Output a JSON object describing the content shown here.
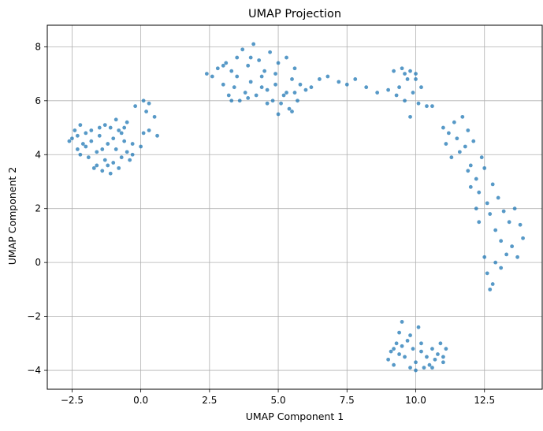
{
  "chart_data": {
    "type": "scatter",
    "title": "UMAP Projection",
    "xlabel": "UMAP Component 1",
    "ylabel": "UMAP Component 2",
    "xlim": [
      -3.4,
      14.6
    ],
    "ylim": [
      -4.7,
      8.8
    ],
    "xticks": [
      -2.5,
      0.0,
      2.5,
      5.0,
      7.5,
      10.0,
      12.5
    ],
    "yticks": [
      -4,
      -2,
      0,
      2,
      4,
      6,
      8
    ],
    "xtick_labels": [
      "−2.5",
      "0.0",
      "2.5",
      "5.0",
      "7.5",
      "10.0",
      "12.5"
    ],
    "ytick_labels": [
      "−4",
      "−2",
      "0",
      "2",
      "4",
      "6",
      "8"
    ],
    "grid": true,
    "marker_color": "#1f77b4",
    "marker_alpha": 0.75,
    "series": [
      {
        "points": [
          [
            -2.5,
            4.6
          ],
          [
            -2.4,
            4.9
          ],
          [
            -2.3,
            4.2
          ],
          [
            -2.2,
            5.1
          ],
          [
            -2.1,
            4.4
          ],
          [
            -2.0,
            4.8
          ],
          [
            -1.9,
            3.9
          ],
          [
            -1.8,
            4.5
          ],
          [
            -1.7,
            3.5
          ],
          [
            -1.6,
            4.1
          ],
          [
            -1.5,
            4.7
          ],
          [
            -1.4,
            3.4
          ],
          [
            -1.3,
            3.8
          ],
          [
            -1.2,
            4.4
          ],
          [
            -1.1,
            5.0
          ],
          [
            -1.0,
            3.7
          ],
          [
            -0.9,
            4.2
          ],
          [
            -0.8,
            4.9
          ],
          [
            -0.7,
            3.9
          ],
          [
            -0.6,
            4.5
          ],
          [
            -0.5,
            5.2
          ],
          [
            -0.4,
            3.8
          ],
          [
            -0.3,
            4.4
          ],
          [
            -0.2,
            5.8
          ],
          [
            0.0,
            4.3
          ],
          [
            0.1,
            4.8
          ],
          [
            0.2,
            5.6
          ],
          [
            0.3,
            4.9
          ],
          [
            0.5,
            5.4
          ],
          [
            0.6,
            4.7
          ],
          [
            -2.0,
            4.3
          ],
          [
            -1.6,
            3.6
          ],
          [
            -1.0,
            4.6
          ],
          [
            -0.8,
            3.5
          ],
          [
            -1.3,
            5.1
          ],
          [
            -2.3,
            4.7
          ],
          [
            -1.1,
            3.3
          ],
          [
            -0.6,
            5.0
          ],
          [
            -0.3,
            4.0
          ],
          [
            0.1,
            6.0
          ],
          [
            -1.8,
            4.9
          ],
          [
            -1.4,
            4.2
          ],
          [
            -0.9,
            5.3
          ],
          [
            -0.5,
            4.1
          ],
          [
            -2.2,
            4.0
          ],
          [
            0.3,
            5.9
          ],
          [
            -1.2,
            3.6
          ],
          [
            -0.7,
            4.8
          ],
          [
            -1.5,
            5.0
          ],
          [
            -2.6,
            4.5
          ],
          [
            2.4,
            7.0
          ],
          [
            2.6,
            6.9
          ],
          [
            2.8,
            7.2
          ],
          [
            3.0,
            6.6
          ],
          [
            3.1,
            7.4
          ],
          [
            3.2,
            6.2
          ],
          [
            3.3,
            7.1
          ],
          [
            3.4,
            6.5
          ],
          [
            3.5,
            7.6
          ],
          [
            3.6,
            6.0
          ],
          [
            3.7,
            7.9
          ],
          [
            3.8,
            6.3
          ],
          [
            3.9,
            7.3
          ],
          [
            4.0,
            6.7
          ],
          [
            4.1,
            8.1
          ],
          [
            4.2,
            6.2
          ],
          [
            4.3,
            7.5
          ],
          [
            4.4,
            6.9
          ],
          [
            4.5,
            7.1
          ],
          [
            4.6,
            6.4
          ],
          [
            4.7,
            7.8
          ],
          [
            4.8,
            6.0
          ],
          [
            4.9,
            6.6
          ],
          [
            5.0,
            7.4
          ],
          [
            5.1,
            5.9
          ],
          [
            5.2,
            6.2
          ],
          [
            5.3,
            7.6
          ],
          [
            5.4,
            5.7
          ],
          [
            5.5,
            6.8
          ],
          [
            5.6,
            7.2
          ],
          [
            5.7,
            6.0
          ],
          [
            5.8,
            6.6
          ],
          [
            5.0,
            5.5
          ],
          [
            5.5,
            5.6
          ],
          [
            6.0,
            6.4
          ],
          [
            6.2,
            6.5
          ],
          [
            6.5,
            6.8
          ],
          [
            6.8,
            6.9
          ],
          [
            7.2,
            6.7
          ],
          [
            7.5,
            6.6
          ],
          [
            3.0,
            7.3
          ],
          [
            3.5,
            6.9
          ],
          [
            4.0,
            7.6
          ],
          [
            4.4,
            6.5
          ],
          [
            4.9,
            7.0
          ],
          [
            5.3,
            6.3
          ],
          [
            3.3,
            6.0
          ],
          [
            3.9,
            6.1
          ],
          [
            4.6,
            5.9
          ],
          [
            5.6,
            6.3
          ],
          [
            7.8,
            6.8
          ],
          [
            8.2,
            6.5
          ],
          [
            8.6,
            6.3
          ],
          [
            9.0,
            6.4
          ],
          [
            9.2,
            7.1
          ],
          [
            9.4,
            6.5
          ],
          [
            9.5,
            7.2
          ],
          [
            9.6,
            6.0
          ],
          [
            9.7,
            6.8
          ],
          [
            9.8,
            7.1
          ],
          [
            9.9,
            6.3
          ],
          [
            10.0,
            7.0
          ],
          [
            10.1,
            5.9
          ],
          [
            10.2,
            6.5
          ],
          [
            10.4,
            5.8
          ],
          [
            10.6,
            5.8
          ],
          [
            9.8,
            5.4
          ],
          [
            10.0,
            6.8
          ],
          [
            9.3,
            6.2
          ],
          [
            9.6,
            7.0
          ],
          [
            11.0,
            5.0
          ],
          [
            11.1,
            4.4
          ],
          [
            11.2,
            4.8
          ],
          [
            11.3,
            3.9
          ],
          [
            11.4,
            5.2
          ],
          [
            11.5,
            4.6
          ],
          [
            11.6,
            4.1
          ],
          [
            11.7,
            5.4
          ],
          [
            11.8,
            4.3
          ],
          [
            11.9,
            4.9
          ],
          [
            12.0,
            3.6
          ],
          [
            12.1,
            4.5
          ],
          [
            12.2,
            3.1
          ],
          [
            12.3,
            2.6
          ],
          [
            12.4,
            3.9
          ],
          [
            12.5,
            3.5
          ],
          [
            12.6,
            2.2
          ],
          [
            12.7,
            1.8
          ],
          [
            12.8,
            2.9
          ],
          [
            12.9,
            1.2
          ],
          [
            13.0,
            2.4
          ],
          [
            13.1,
            0.8
          ],
          [
            13.2,
            1.9
          ],
          [
            13.3,
            0.3
          ],
          [
            13.4,
            1.5
          ],
          [
            13.5,
            0.6
          ],
          [
            13.6,
            2.0
          ],
          [
            13.7,
            0.2
          ],
          [
            13.8,
            1.4
          ],
          [
            13.9,
            0.9
          ],
          [
            12.5,
            0.2
          ],
          [
            12.6,
            -0.4
          ],
          [
            12.7,
            -1.0
          ],
          [
            12.8,
            -0.8
          ],
          [
            12.9,
            0.0
          ],
          [
            12.3,
            1.5
          ],
          [
            12.0,
            2.8
          ],
          [
            11.9,
            3.4
          ],
          [
            12.2,
            2.0
          ],
          [
            13.1,
            -0.2
          ],
          [
            9.0,
            -3.6
          ],
          [
            9.1,
            -3.3
          ],
          [
            9.2,
            -3.8
          ],
          [
            9.3,
            -3.0
          ],
          [
            9.4,
            -2.6
          ],
          [
            9.5,
            -2.2
          ],
          [
            9.6,
            -3.5
          ],
          [
            9.7,
            -2.9
          ],
          [
            9.8,
            -3.9
          ],
          [
            9.9,
            -3.2
          ],
          [
            10.0,
            -3.7
          ],
          [
            10.1,
            -2.4
          ],
          [
            10.2,
            -3.0
          ],
          [
            10.3,
            -3.9
          ],
          [
            10.4,
            -3.5
          ],
          [
            10.5,
            -3.8
          ],
          [
            10.6,
            -3.2
          ],
          [
            10.7,
            -3.6
          ],
          [
            10.8,
            -3.4
          ],
          [
            10.9,
            -3.0
          ],
          [
            11.0,
            -3.5
          ],
          [
            11.1,
            -3.2
          ],
          [
            9.5,
            -3.1
          ],
          [
            9.8,
            -2.7
          ],
          [
            10.2,
            -3.3
          ],
          [
            9.4,
            -3.4
          ],
          [
            10.0,
            -4.0
          ],
          [
            10.6,
            -3.9
          ],
          [
            11.0,
            -3.7
          ],
          [
            9.2,
            -3.2
          ]
        ]
      }
    ]
  }
}
